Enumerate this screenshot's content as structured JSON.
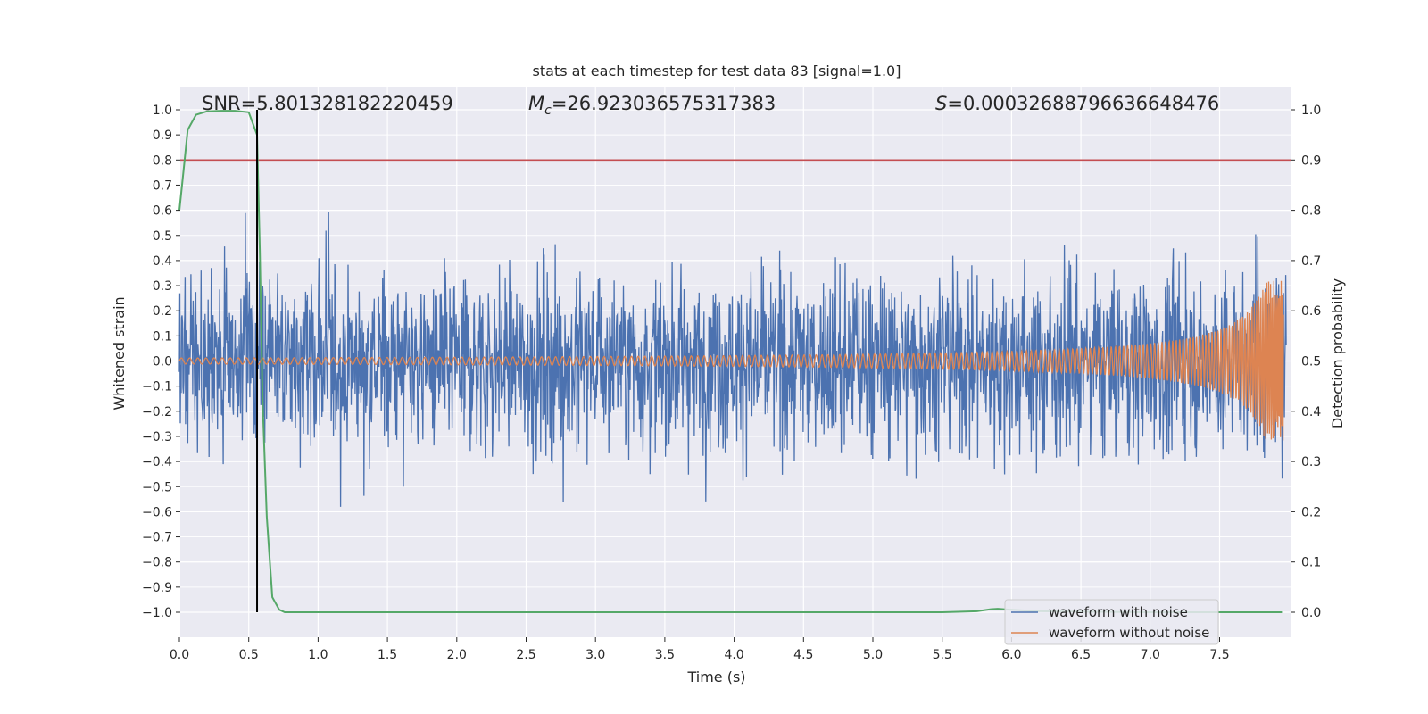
{
  "chart_data": {
    "type": "line",
    "title": "stats at each timestep for test data 83 [signal=1.0]",
    "xlabel": "Time (s)",
    "ylabel": "Whitened strain",
    "y2label": "Detection probability",
    "xlim": [
      0.0,
      8.0
    ],
    "ylim": [
      -1.1,
      1.1
    ],
    "y2lim": [
      -0.05,
      1.05
    ],
    "xticks": [
      0.0,
      0.5,
      1.0,
      1.5,
      2.0,
      2.5,
      3.0,
      3.5,
      4.0,
      4.5,
      5.0,
      5.5,
      6.0,
      6.5,
      7.0,
      7.5
    ],
    "xtick_labels": [
      "0.0",
      "0.5",
      "1.0",
      "1.5",
      "2.0",
      "2.5",
      "3.0",
      "3.5",
      "4.0",
      "4.5",
      "5.0",
      "5.5",
      "6.0",
      "6.5",
      "7.0",
      "7.5"
    ],
    "yticks": [
      -1.0,
      -0.9,
      -0.8,
      -0.7,
      -0.6,
      -0.5,
      -0.4,
      -0.3,
      -0.2,
      -0.1,
      0.0,
      0.1,
      0.2,
      0.3,
      0.4,
      0.5,
      0.6,
      0.7,
      0.8,
      0.9,
      1.0
    ],
    "ytick_labels": [
      "−1.0",
      "−0.9",
      "−0.8",
      "−0.7",
      "−0.6",
      "−0.5",
      "−0.4",
      "−0.3",
      "−0.2",
      "−0.1",
      "0.0",
      "0.1",
      "0.2",
      "0.3",
      "0.4",
      "0.5",
      "0.6",
      "0.7",
      "0.8",
      "0.9",
      "1.0"
    ],
    "y2ticks": [
      0.0,
      0.1,
      0.2,
      0.3,
      0.4,
      0.5,
      0.6,
      0.7,
      0.8,
      0.9,
      1.0
    ],
    "y2tick_labels": [
      "0.0",
      "0.1",
      "0.2",
      "0.3",
      "0.4",
      "0.5",
      "0.6",
      "0.7",
      "0.8",
      "0.9",
      "1.0"
    ],
    "grid": true,
    "legend_position": "bottom-right",
    "annotations": {
      "snr": "SNR=5.801328182220459",
      "mc_symbol": "M",
      "mc_sub": "c",
      "mc_value": "=26.923036575317383",
      "s_symbol": "S",
      "s_value": "=0.00032688796636648476"
    },
    "series": [
      {
        "name": "waveform with noise",
        "color": "#4c72b0",
        "axis": "left",
        "description": "noisy whitened strain, about 8000 samples over 0-8 s, roughly within -1 to 1"
      },
      {
        "name": "waveform without noise",
        "color": "#dd8452",
        "axis": "left",
        "description": "chirp signal, amplitude ~0.01 rising to ~0.3 near 7.95 s"
      },
      {
        "name": "detection probability",
        "color": "#55a868",
        "axis": "right",
        "x": [
          0.0,
          0.03,
          0.06,
          0.12,
          0.2,
          0.3,
          0.4,
          0.5,
          0.56,
          0.58,
          0.6,
          0.63,
          0.67,
          0.72,
          0.76,
          0.8,
          1.0,
          1.3,
          2.0,
          3.0,
          4.0,
          5.0,
          5.5,
          5.75,
          5.85,
          5.9,
          6.0,
          6.2,
          7.0,
          7.95
        ],
        "values": [
          0.8,
          0.88,
          0.96,
          0.99,
          0.997,
          0.998,
          0.998,
          0.995,
          0.95,
          0.72,
          0.42,
          0.19,
          0.03,
          0.005,
          0.0,
          0.0,
          0.0,
          0.0,
          0.0,
          0.0,
          0.0,
          0.0,
          0.0,
          0.002,
          0.006,
          0.007,
          0.005,
          0.002,
          0.0,
          0.0
        ]
      }
    ],
    "threshold_line": {
      "axis": "right",
      "value": 0.9,
      "color": "#c44e52"
    },
    "vertical_marker": {
      "x": 0.56,
      "y_from": -1.0,
      "y_to": 1.0,
      "color": "#000000"
    }
  }
}
